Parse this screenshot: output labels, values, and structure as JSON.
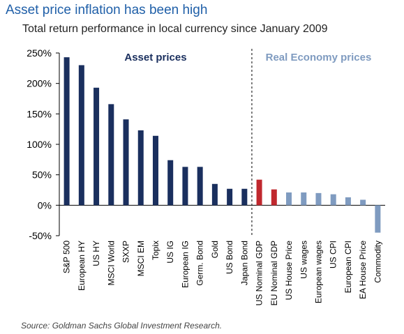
{
  "title": "Asset price inflation has been high",
  "subtitle": "Total return performance in local currency since January 2009",
  "source": "Source: Goldman Sachs Global Investment Research.",
  "colors": {
    "asset": "#1a2f5e",
    "gdp": "#c0282e",
    "real_economy": "#7f9bc0",
    "title": "#1f5fa8"
  },
  "chart_data": {
    "type": "bar",
    "title": "",
    "xlabel": "",
    "ylabel": "",
    "ylim": [
      -50,
      250
    ],
    "yticks": [
      -50,
      0,
      50,
      100,
      150,
      200,
      250
    ],
    "ytick_labels": [
      "-50%",
      "0%",
      "50%",
      "100%",
      "150%",
      "200%",
      "250%"
    ],
    "grid": false,
    "groups": [
      {
        "label": "Asset prices",
        "start": 0,
        "end": 12
      },
      {
        "label": "Real Economy prices",
        "start": 13,
        "end": 21
      }
    ],
    "categories": [
      "S&P 500",
      "European HY",
      "US HY",
      "MSCI World",
      "SXXP",
      "MSCI EM",
      "Topix",
      "US IG",
      "European IG",
      "Germ. Bond",
      "Gold",
      "US Bond",
      "Japan Bond",
      "US Nominal GDP",
      "EU Nominal GDP",
      "US House Price",
      "US wages",
      "European wages",
      "US CPI",
      "European CPI",
      "EA House Price",
      "Commodity"
    ],
    "values": [
      243,
      230,
      193,
      166,
      141,
      123,
      114,
      74,
      63,
      63,
      35,
      27,
      27,
      42,
      26,
      21,
      21,
      20,
      18,
      13,
      9,
      -45
    ],
    "bar_colors": [
      "asset",
      "asset",
      "asset",
      "asset",
      "asset",
      "asset",
      "asset",
      "asset",
      "asset",
      "asset",
      "asset",
      "asset",
      "asset",
      "gdp",
      "gdp",
      "real_economy",
      "real_economy",
      "real_economy",
      "real_economy",
      "real_economy",
      "real_economy",
      "real_economy"
    ]
  }
}
